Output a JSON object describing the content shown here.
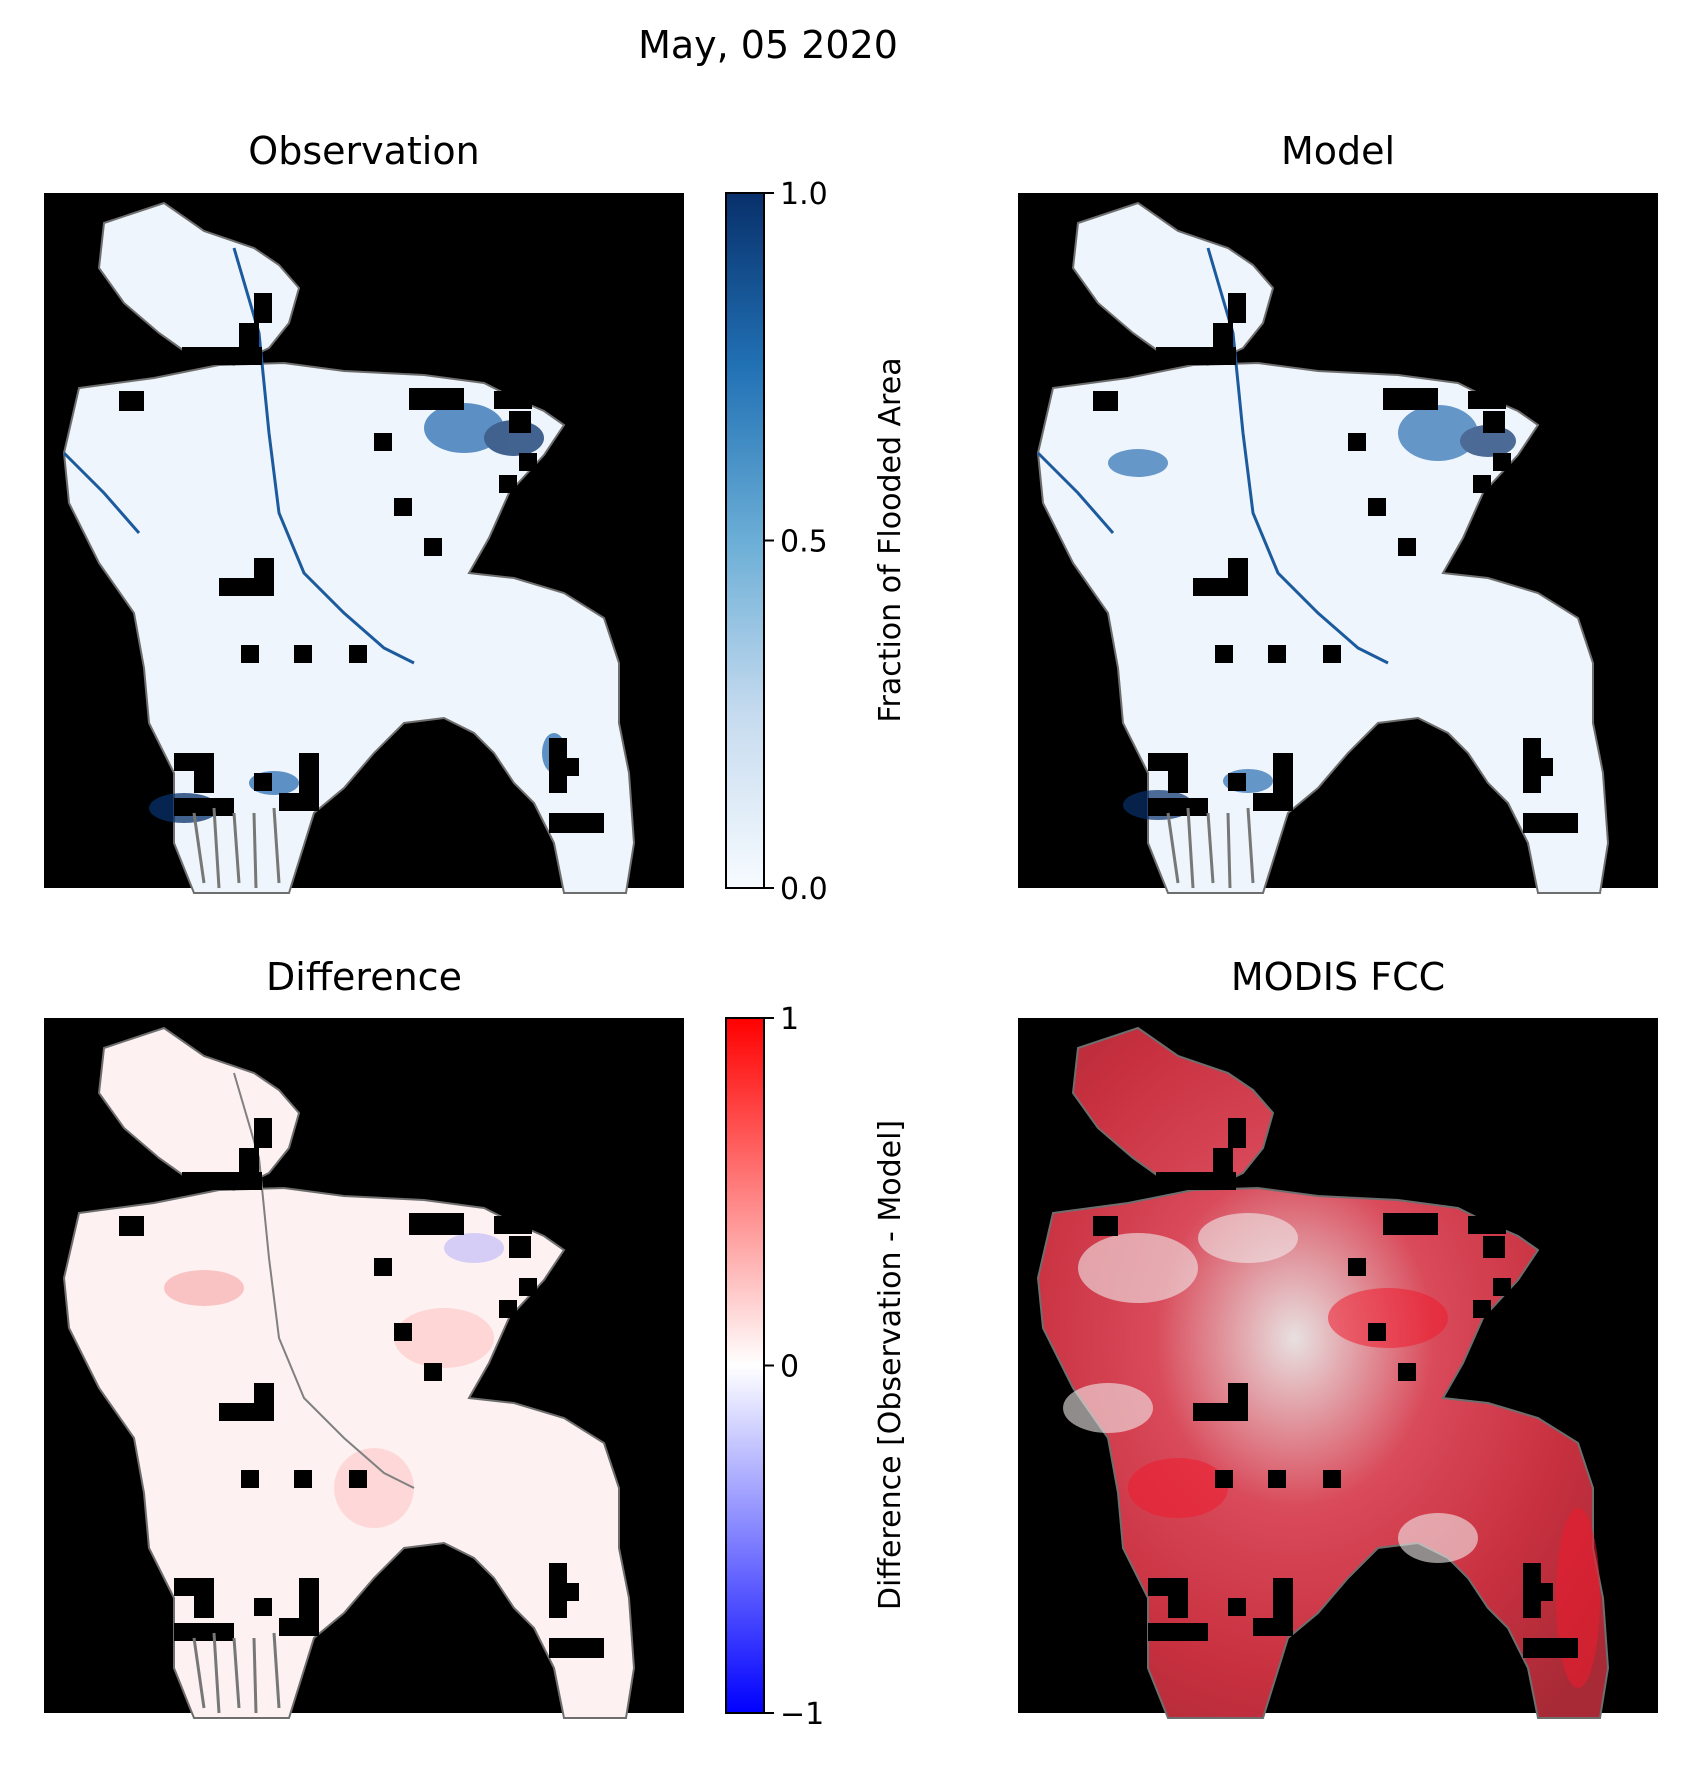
{
  "figure": {
    "suptitle": "May, 05 2020"
  },
  "chart_data": [
    {
      "type": "heatmap",
      "title": "Observation",
      "colormap": "Blues",
      "value_range": [
        0,
        1
      ],
      "background": "#000000"
    },
    {
      "type": "heatmap",
      "title": "Model",
      "colormap": "Blues",
      "value_range": [
        0,
        1
      ],
      "background": "#000000"
    },
    {
      "type": "heatmap",
      "title": "Difference",
      "colormap": "bwr",
      "value_range": [
        -1,
        1
      ],
      "background": "#000000"
    },
    {
      "type": "image",
      "title": "MODIS FCC",
      "background": "#000000"
    }
  ],
  "colorbars": {
    "flood": {
      "label": "Fraction of Flooded Area",
      "ticks": [
        "0.0",
        "0.5",
        "1.0"
      ],
      "tick_values": [
        0,
        0.5,
        1
      ],
      "range": [
        0,
        1
      ],
      "colors": [
        "#f7fbff",
        "#c6dbef",
        "#6baed6",
        "#2171b5",
        "#08306b"
      ]
    },
    "difference": {
      "label": "Difference [Observation - Model]",
      "ticks": [
        "−1",
        "0",
        "1"
      ],
      "tick_values": [
        -1,
        0,
        1
      ],
      "range": [
        -1,
        1
      ],
      "colors": [
        "#0000ff",
        "#ffffff",
        "#ff0000"
      ]
    }
  }
}
